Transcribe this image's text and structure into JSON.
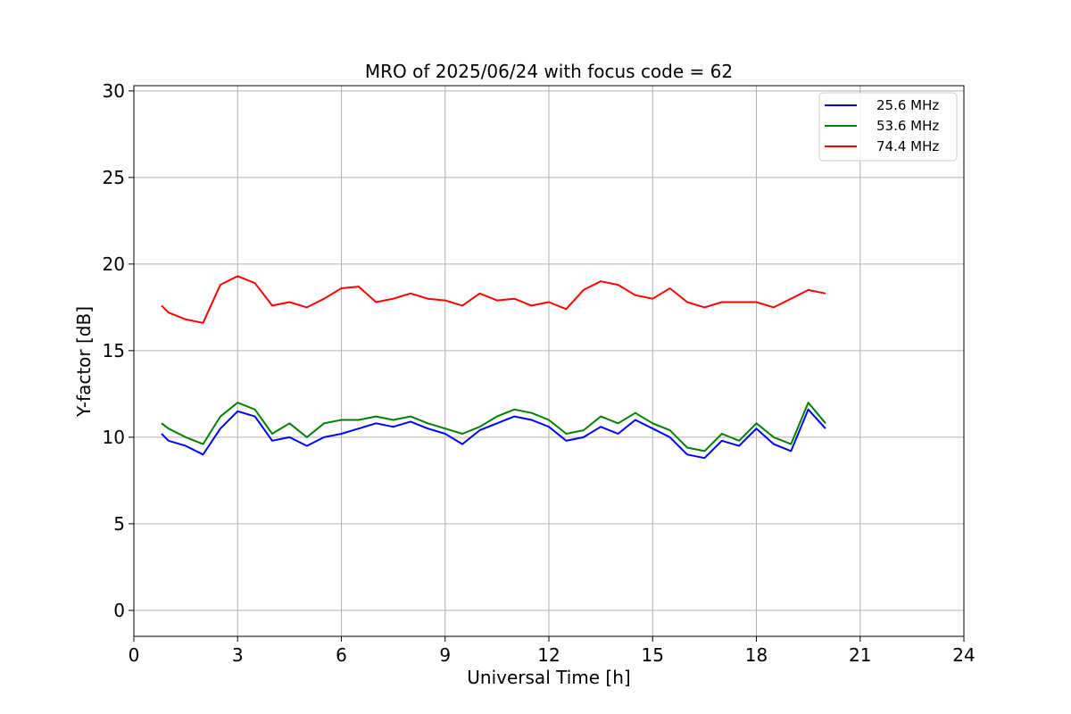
{
  "chart_data": {
    "type": "line",
    "title": "MRO of 2025/06/24 with focus code = 62",
    "xlabel": "Universal Time [h]",
    "ylabel": "Y-factor [dB]",
    "xlim": [
      0,
      24
    ],
    "ylim": [
      -1.5,
      30.3
    ],
    "xticks": [
      0,
      3,
      6,
      9,
      12,
      15,
      18,
      21,
      24
    ],
    "yticks": [
      0,
      5,
      10,
      15,
      20,
      25,
      30
    ],
    "grid": true,
    "legend_position": "top-right",
    "series": [
      {
        "name": "25.6 MHz",
        "color": "#0000ff",
        "x": [
          0.8,
          1.0,
          1.5,
          2.0,
          2.5,
          3.0,
          3.5,
          4.0,
          4.5,
          5.0,
          5.5,
          6.0,
          6.5,
          7.0,
          7.5,
          8.0,
          8.5,
          9.0,
          9.5,
          10.0,
          10.5,
          11.0,
          11.5,
          12.0,
          12.5,
          13.0,
          13.5,
          14.0,
          14.5,
          15.0,
          15.5,
          16.0,
          16.5,
          17.0,
          17.5,
          18.0,
          18.5,
          19.0,
          19.5,
          20.0
        ],
        "y": [
          10.2,
          9.8,
          9.5,
          9.0,
          10.5,
          11.5,
          11.2,
          9.8,
          10.0,
          9.5,
          10.0,
          10.2,
          10.5,
          10.8,
          10.6,
          10.9,
          10.5,
          10.2,
          9.6,
          10.4,
          10.8,
          11.2,
          11.0,
          10.6,
          9.8,
          10.0,
          10.6,
          10.2,
          11.0,
          10.5,
          10.0,
          9.0,
          8.8,
          9.8,
          9.5,
          10.5,
          9.6,
          9.2,
          11.6,
          10.5
        ]
      },
      {
        "name": "53.6 MHz",
        "color": "#008000",
        "x": [
          0.8,
          1.0,
          1.5,
          2.0,
          2.5,
          3.0,
          3.5,
          4.0,
          4.5,
          5.0,
          5.5,
          6.0,
          6.5,
          7.0,
          7.5,
          8.0,
          8.5,
          9.0,
          9.5,
          10.0,
          10.5,
          11.0,
          11.5,
          12.0,
          12.5,
          13.0,
          13.5,
          14.0,
          14.5,
          15.0,
          15.5,
          16.0,
          16.5,
          17.0,
          17.5,
          18.0,
          18.5,
          19.0,
          19.5,
          20.0
        ],
        "y": [
          10.8,
          10.5,
          10.0,
          9.6,
          11.2,
          12.0,
          11.6,
          10.2,
          10.8,
          10.0,
          10.8,
          11.0,
          11.0,
          11.2,
          11.0,
          11.2,
          10.8,
          10.5,
          10.2,
          10.6,
          11.2,
          11.6,
          11.4,
          11.0,
          10.2,
          10.4,
          11.2,
          10.8,
          11.4,
          10.8,
          10.4,
          9.4,
          9.2,
          10.2,
          9.8,
          10.8,
          10.0,
          9.6,
          12.0,
          10.8
        ]
      },
      {
        "name": "74.4 MHz",
        "color": "#ff0000",
        "x": [
          0.8,
          1.0,
          1.5,
          2.0,
          2.5,
          3.0,
          3.5,
          4.0,
          4.5,
          5.0,
          5.5,
          6.0,
          6.5,
          7.0,
          7.5,
          8.0,
          8.5,
          9.0,
          9.5,
          10.0,
          10.5,
          11.0,
          11.5,
          12.0,
          12.5,
          13.0,
          13.5,
          14.0,
          14.5,
          15.0,
          15.5,
          16.0,
          16.5,
          17.0,
          17.5,
          18.0,
          18.5,
          19.0,
          19.5,
          20.0
        ],
        "y": [
          17.6,
          17.2,
          16.8,
          16.6,
          18.8,
          19.3,
          18.9,
          17.6,
          17.8,
          17.5,
          18.0,
          18.6,
          18.7,
          17.8,
          18.0,
          18.3,
          18.0,
          17.9,
          17.6,
          18.3,
          17.9,
          18.0,
          17.6,
          17.8,
          17.4,
          18.5,
          19.0,
          18.8,
          18.2,
          18.0,
          18.6,
          17.8,
          17.5,
          17.8,
          17.8,
          17.8,
          17.5,
          18.0,
          18.5,
          18.3
        ]
      }
    ]
  }
}
